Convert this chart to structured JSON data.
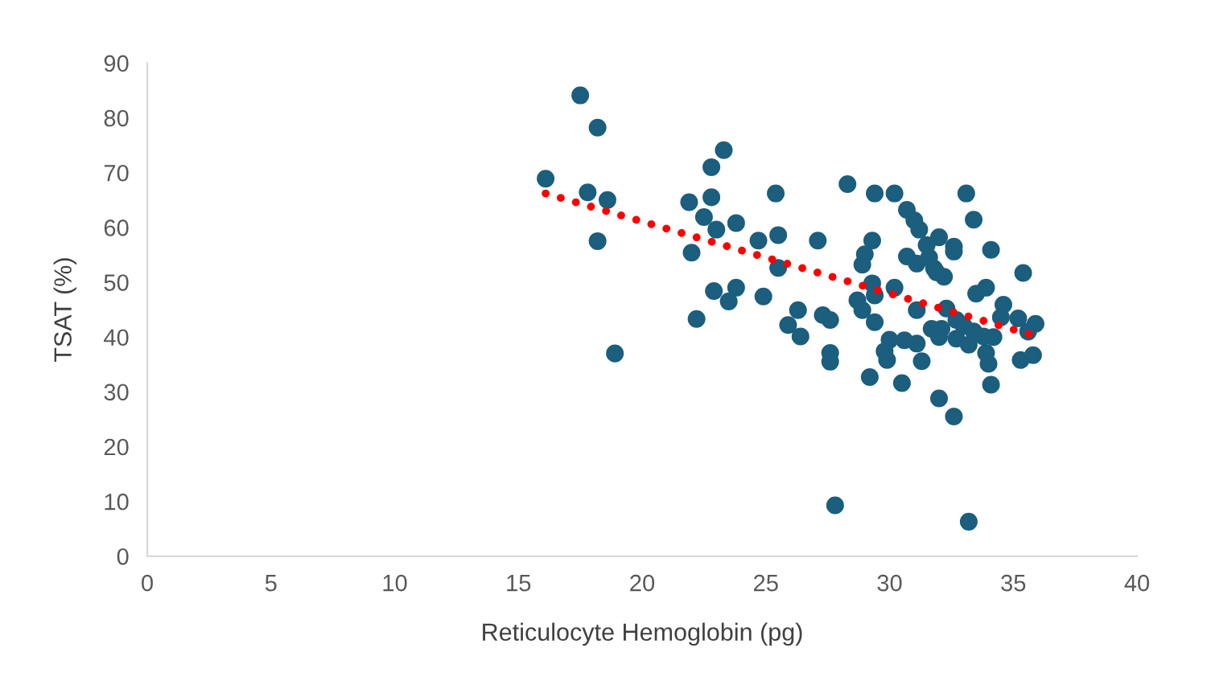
{
  "chart_data": {
    "type": "scatter",
    "xlabel": "Reticulocyte Hemoglobin (pg)",
    "ylabel": "TSAT (%)",
    "xlim": [
      0,
      40
    ],
    "xticks": [
      0,
      5,
      10,
      15,
      20,
      25,
      30,
      35,
      40
    ],
    "ylim": [
      0,
      90
    ],
    "yticks": [
      0,
      10,
      20,
      30,
      40,
      50,
      60,
      70,
      80,
      90
    ],
    "grid": false,
    "legend": false,
    "marker": "circle",
    "series": [
      {
        "color": "#1b5e7e",
        "x": [
          16.1,
          17.5,
          18.2,
          17.8,
          18.6,
          18.2,
          18.9,
          23.3,
          22.8,
          22.8,
          21.9,
          22.5,
          23.0,
          23.8,
          22.0,
          24.7,
          25.4,
          25.5,
          27.1,
          25.5,
          22.9,
          23.8,
          23.5,
          24.9,
          22.2,
          26.3,
          25.9,
          26.4,
          27.3,
          27.6,
          27.6,
          27.6,
          27.8,
          28.3,
          29.4,
          30.2,
          33.1,
          30.7,
          31.0,
          31.2,
          33.4,
          29.3,
          32.0,
          31.5,
          32.6,
          32.6,
          34.1,
          29.0,
          28.9,
          30.7,
          31.1,
          31.6,
          31.8,
          31.9,
          32.2,
          35.4,
          29.3,
          29.4,
          30.2,
          28.7,
          28.9,
          29.4,
          31.1,
          32.3,
          33.5,
          33.9,
          34.6,
          34.5,
          35.2,
          35.9,
          35.6,
          31.7,
          32.1,
          32.0,
          32.7,
          33.0,
          33.4,
          33.8,
          34.2,
          32.7,
          33.2,
          30.0,
          30.6,
          31.1,
          29.8,
          29.9,
          31.3,
          33.9,
          34.0,
          35.3,
          35.8,
          29.2,
          30.5,
          34.1,
          32.0,
          32.6,
          33.2
        ],
        "values": [
          68.9,
          84.1,
          78.2,
          66.4,
          65.0,
          57.5,
          37.0,
          74.1,
          71.0,
          65.5,
          64.6,
          61.9,
          59.6,
          60.8,
          55.4,
          57.6,
          66.2,
          58.6,
          57.6,
          52.6,
          48.4,
          49.0,
          46.5,
          47.4,
          43.3,
          44.9,
          42.2,
          40.1,
          44.0,
          43.1,
          37.1,
          35.5,
          9.3,
          67.9,
          66.2,
          66.2,
          66.2,
          63.2,
          61.3,
          59.6,
          61.4,
          57.6,
          58.2,
          56.8,
          56.5,
          55.6,
          55.9,
          55.1,
          53.2,
          54.7,
          53.4,
          54.5,
          52.5,
          51.8,
          51.0,
          51.7,
          49.8,
          47.6,
          49.0,
          46.7,
          44.9,
          42.7,
          44.9,
          45.2,
          47.9,
          49.0,
          45.9,
          43.6,
          43.4,
          42.4,
          41.0,
          41.5,
          41.5,
          40.0,
          43.1,
          42.0,
          41.0,
          40.1,
          40.0,
          39.7,
          38.6,
          39.5,
          39.4,
          38.8,
          37.4,
          35.8,
          35.6,
          37.1,
          35.1,
          35.8,
          36.7,
          32.7,
          31.6,
          31.3,
          28.8,
          25.5,
          6.3
        ]
      },
      {
        "type": "line",
        "color": "#ff0000",
        "line_style": "dotted",
        "marker": "none",
        "x": [
          16.1,
          35.9
        ],
        "values": [
          66.2,
          40.2
        ]
      }
    ]
  }
}
